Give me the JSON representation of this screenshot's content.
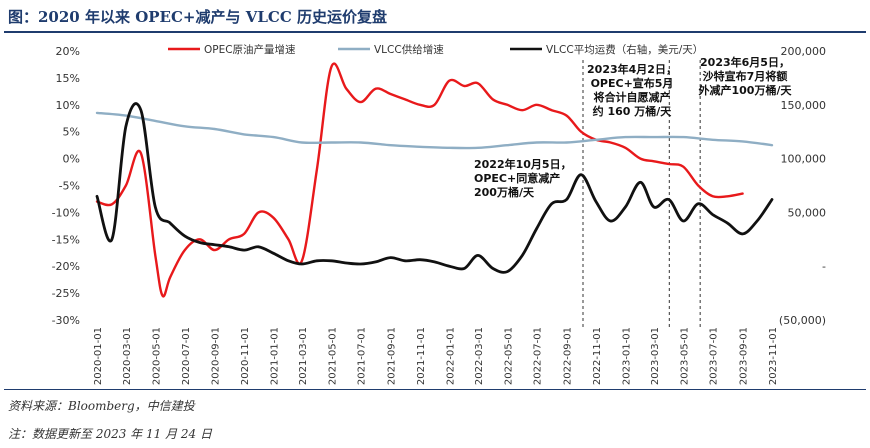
{
  "title": "图：2020 年以来 OPEC+减产与 VLCC 历史运价复盘",
  "source": "资料来源：Bloomberg，中信建投",
  "note": "注：数据更新至 2023 年 11 月 24 日",
  "colors": {
    "opec": "#e8191b",
    "supply": "#8faec4",
    "freight": "#111111",
    "title": "#1f3c6e"
  },
  "chart_data": {
    "type": "line",
    "legend_placement": "top",
    "grid": false,
    "x_ticks": [
      "2020-01-01",
      "2020-03-01",
      "2020-05-01",
      "2020-07-01",
      "2020-09-01",
      "2020-11-01",
      "2021-01-01",
      "2021-03-01",
      "2021-05-01",
      "2021-07-01",
      "2021-09-01",
      "2021-11-01",
      "2022-01-01",
      "2022-03-01",
      "2022-05-01",
      "2022-07-01",
      "2022-09-01",
      "2022-11-01",
      "2023-01-01",
      "2023-03-01",
      "2023-05-01",
      "2023-07-01",
      "2023-09-01",
      "2023-11-01"
    ],
    "y_left": {
      "range": [
        -30,
        20
      ],
      "ticks": [
        "20%",
        "15%",
        "10%",
        "5%",
        "0%",
        "-5%",
        "-10%",
        "-15%",
        "-20%",
        "-25%",
        "-30%"
      ]
    },
    "y_right": {
      "range": [
        -50000,
        200000
      ],
      "ticks": [
        "200,000",
        "150,000",
        "100,000",
        "50,000",
        "-",
        "(50,000)"
      ]
    },
    "series": [
      {
        "name": "OPEC原油产量增速",
        "axis": "left",
        "color": "#e8191b",
        "x": [
          "2020-01-01",
          "2020-02-01",
          "2020-03-01",
          "2020-04-01",
          "2020-05-01",
          "2020-05-16",
          "2020-06-01",
          "2020-07-01",
          "2020-08-01",
          "2020-09-01",
          "2020-10-01",
          "2020-11-01",
          "2020-12-01",
          "2021-01-01",
          "2021-02-01",
          "2021-03-01",
          "2021-04-01",
          "2021-05-01",
          "2021-06-01",
          "2021-07-01",
          "2021-08-01",
          "2021-09-01",
          "2021-10-01",
          "2021-11-01",
          "2021-12-01",
          "2022-01-01",
          "2022-02-01",
          "2022-03-01",
          "2022-04-01",
          "2022-05-01",
          "2022-06-01",
          "2022-07-01",
          "2022-08-01",
          "2022-09-01",
          "2022-10-01",
          "2022-11-01",
          "2022-12-01",
          "2023-01-01",
          "2023-02-01",
          "2023-03-01",
          "2023-04-01",
          "2023-05-01",
          "2023-06-01",
          "2023-07-01",
          "2023-08-01",
          "2023-09-01"
        ],
        "values": [
          -8,
          -8.5,
          -5,
          1,
          -18,
          -25.5,
          -22,
          -17,
          -15,
          -17,
          -15,
          -14,
          -10,
          -11,
          -15,
          -19,
          -2,
          17,
          13,
          10.5,
          13,
          12,
          11,
          10,
          10,
          14.5,
          13.5,
          14,
          11,
          10,
          9,
          10,
          9,
          8,
          5,
          3.5,
          3,
          2,
          0,
          -0.5,
          -1,
          -1.5,
          -5,
          -7,
          -7,
          -6.5
        ]
      },
      {
        "name": "VLCC供给增速",
        "axis": "left",
        "color": "#8faec4",
        "x": [
          "2020-01-01",
          "2020-03-01",
          "2020-05-01",
          "2020-07-01",
          "2020-09-01",
          "2020-11-01",
          "2021-01-01",
          "2021-03-01",
          "2021-05-01",
          "2021-07-01",
          "2021-09-01",
          "2021-11-01",
          "2022-01-01",
          "2022-03-01",
          "2022-05-01",
          "2022-07-01",
          "2022-09-01",
          "2022-11-01",
          "2023-01-01",
          "2023-03-01",
          "2023-05-01",
          "2023-07-01",
          "2023-09-01",
          "2023-11-01"
        ],
        "values": [
          8.5,
          8,
          7,
          6,
          5.5,
          4.5,
          4,
          3,
          3,
          3,
          2.5,
          2.2,
          2,
          2,
          2.5,
          3,
          3,
          3.5,
          4,
          4,
          4,
          3.5,
          3.2,
          2.5
        ]
      },
      {
        "name": "VLCC平均运费（右轴，美元/天）",
        "axis": "right",
        "color": "#111111",
        "x": [
          "2020-01-01",
          "2020-02-01",
          "2020-03-01",
          "2020-04-01",
          "2020-05-01",
          "2020-06-01",
          "2020-07-01",
          "2020-08-01",
          "2020-09-01",
          "2020-10-01",
          "2020-11-01",
          "2020-12-01",
          "2021-01-01",
          "2021-02-01",
          "2021-03-01",
          "2021-04-01",
          "2021-05-01",
          "2021-06-01",
          "2021-07-01",
          "2021-08-01",
          "2021-09-01",
          "2021-10-01",
          "2021-11-01",
          "2021-12-01",
          "2022-01-01",
          "2022-02-01",
          "2022-03-01",
          "2022-04-01",
          "2022-05-01",
          "2022-06-01",
          "2022-07-01",
          "2022-08-01",
          "2022-09-01",
          "2022-10-01",
          "2022-11-01",
          "2022-12-01",
          "2023-01-01",
          "2023-02-01",
          "2023-03-01",
          "2023-04-01",
          "2023-05-01",
          "2023-06-01",
          "2023-07-01",
          "2023-08-01",
          "2023-09-01",
          "2023-10-01",
          "2023-11-01"
        ],
        "values": [
          65000,
          25000,
          130000,
          145000,
          55000,
          40000,
          28000,
          22000,
          20000,
          18000,
          15000,
          18000,
          12000,
          5000,
          2000,
          5000,
          5000,
          3000,
          2000,
          4000,
          8000,
          5000,
          6000,
          4000,
          0,
          -2000,
          10000,
          -2000,
          -5000,
          10000,
          35000,
          58000,
          62000,
          85000,
          60000,
          42000,
          55000,
          78000,
          55000,
          62000,
          42000,
          58000,
          48000,
          40000,
          30000,
          42000,
          62000
        ]
      }
    ],
    "annotations": [
      {
        "date": "2022-10-05",
        "text": [
          "2022年10月5日，",
          "OPEC+同意减产",
          "200万桶/天"
        ]
      },
      {
        "date": "2023-04-02",
        "text": [
          "2023年4月2日，",
          "OPEC+宣布5月",
          "将合计自愿减产",
          "约 160 万桶/天"
        ]
      },
      {
        "date": "2023-06-05",
        "text": [
          "2023年6月5日，",
          "沙特宣布7月将额",
          "外减产100万桶/天"
        ]
      }
    ]
  }
}
